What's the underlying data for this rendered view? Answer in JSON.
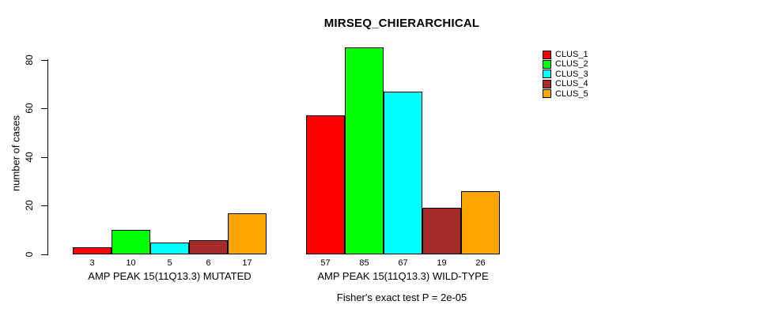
{
  "title": "MIRSEQ_CHIERARCHICAL",
  "chart_data": {
    "type": "bar",
    "title": "MIRSEQ_CHIERARCHICAL",
    "xlabel": "",
    "ylabel": "number of cases",
    "ylim": [
      0,
      80
    ],
    "yticks": [
      0,
      20,
      40,
      60,
      80
    ],
    "grid": false,
    "legend_position": "top-right-outside",
    "categories": [
      "AMP PEAK 15(11Q13.3) MUTATED",
      "AMP PEAK 15(11Q13.3) WILD-TYPE"
    ],
    "series": [
      {
        "name": "CLUS_1",
        "color": "#FF0000",
        "values": [
          3,
          57
        ]
      },
      {
        "name": "CLUS_2",
        "color": "#00FF00",
        "values": [
          10,
          85
        ]
      },
      {
        "name": "CLUS_3",
        "color": "#00FFFF",
        "values": [
          5,
          67
        ]
      },
      {
        "name": "CLUS_4",
        "color": "#A52A2A",
        "values": [
          6,
          19
        ]
      },
      {
        "name": "CLUS_5",
        "color": "#FFA500",
        "values": [
          17,
          26
        ]
      }
    ],
    "groups": [
      {
        "label": "AMP PEAK 15(11Q13.3) MUTATED",
        "values": [
          3,
          10,
          5,
          6,
          17
        ]
      },
      {
        "label": "AMP PEAK 15(11Q13.3) WILD-TYPE",
        "values": [
          57,
          85,
          67,
          19,
          26
        ]
      }
    ],
    "bar_value_labels": [
      [
        "3",
        "10",
        "5",
        "6",
        "17"
      ],
      [
        "57",
        "85",
        "67",
        "19",
        "26"
      ]
    ],
    "annotation": "Fisher's exact test P = 2e-05",
    "bar_border_color": "#000000",
    "axis_color": "#000000",
    "background_color": "#FFFFFF"
  },
  "legend": {
    "entries": [
      {
        "label": "CLUS_1",
        "color": "#FF0000"
      },
      {
        "label": "CLUS_2",
        "color": "#00FF00"
      },
      {
        "label": "CLUS_3",
        "color": "#00FFFF"
      },
      {
        "label": "CLUS_4",
        "color": "#A52A2A"
      },
      {
        "label": "CLUS_5",
        "color": "#FFA500"
      }
    ]
  }
}
